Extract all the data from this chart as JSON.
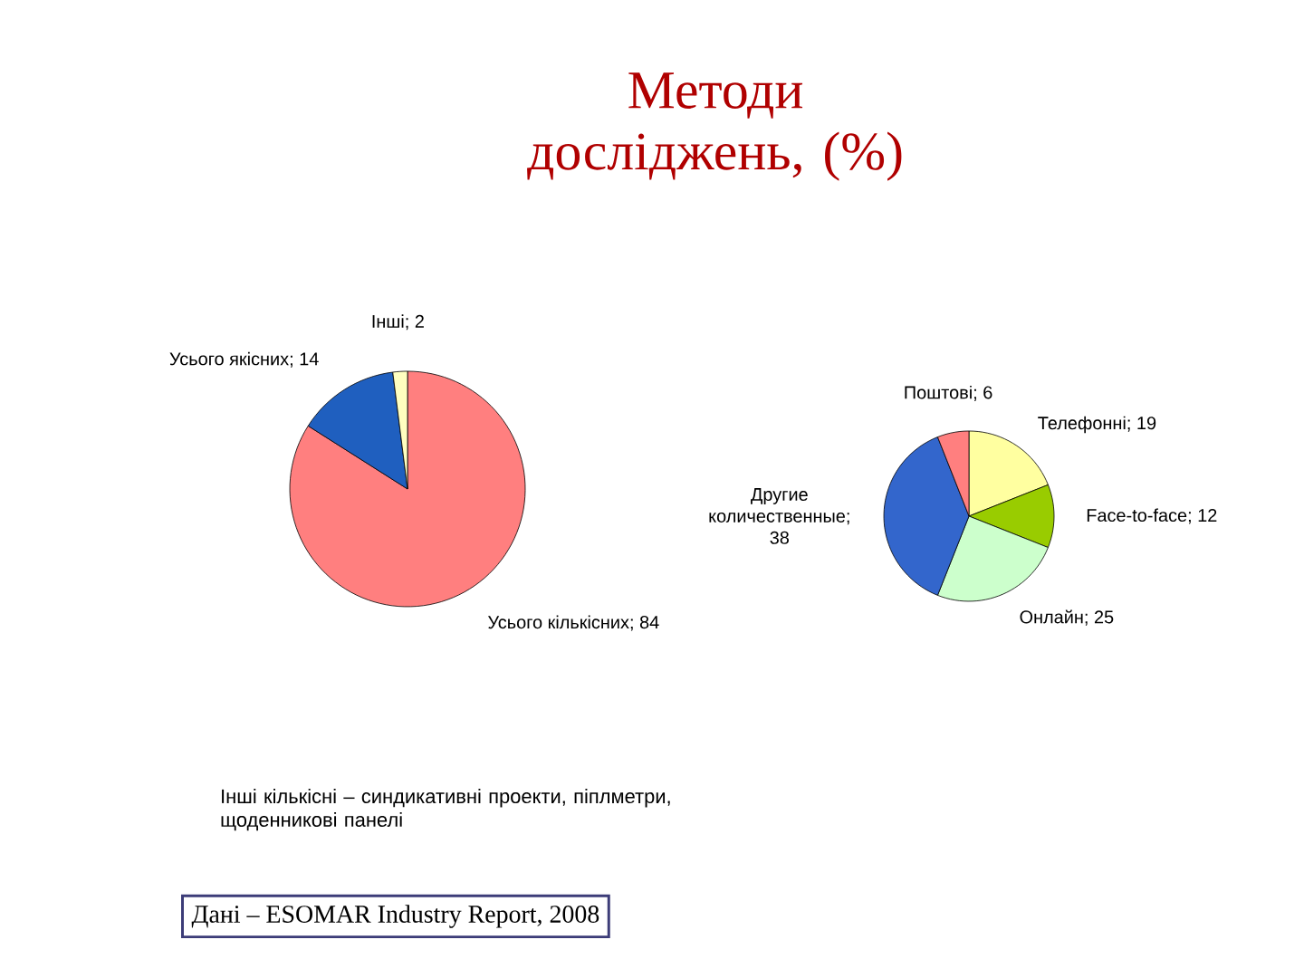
{
  "chart_data": [
    {
      "type": "pie",
      "title": "Методи досліджень, (%)",
      "categories": [
        "Усього кількісних",
        "Усього якісних",
        "Інші"
      ],
      "values": [
        84,
        14,
        2
      ],
      "colors": [
        "#ff7f7f",
        "#1f5fbf",
        "#ffffc0"
      ],
      "data_labels": true,
      "value_labels": [
        "; 84",
        "; 14",
        "; 2"
      ],
      "annotations": [
        "Інші кількісні – синдикативні проекти, піплметри, щоденникові панелі",
        "Дані – ESOMAR Industry Report, 2008"
      ]
    },
    {
      "type": "pie",
      "categories": [
        "Телефонні",
        "Face-to-face",
        "Онлайн",
        "Другие количественные",
        "Поштові"
      ],
      "values": [
        19,
        12,
        25,
        38,
        6
      ],
      "colors": [
        "#ffffa0",
        "#99cc00",
        "#ccffcc",
        "#3366cc",
        "#ff7f7f"
      ],
      "data_labels": true,
      "value_labels": [
        "; 19",
        "; 12",
        "; 25",
        "; 38",
        "; 6"
      ]
    }
  ]
}
